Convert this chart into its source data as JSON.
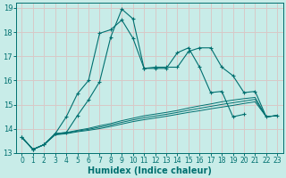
{
  "xlabel": "Humidex (Indice chaleur)",
  "ylabel": "",
  "xlim": [
    -0.5,
    23.5
  ],
  "ylim": [
    13,
    19.2
  ],
  "yticks": [
    13,
    14,
    15,
    16,
    17,
    18,
    19
  ],
  "xticks": [
    0,
    1,
    2,
    3,
    4,
    5,
    6,
    7,
    8,
    9,
    10,
    11,
    12,
    13,
    14,
    15,
    16,
    17,
    18,
    19,
    20,
    21,
    22,
    23
  ],
  "background_color": "#c8ece8",
  "grid_color": "#d8c8c8",
  "line_color": "#007070",
  "lines": [
    {
      "x": [
        0,
        1,
        2,
        3,
        4,
        5,
        6,
        7,
        8,
        9,
        10,
        11,
        12,
        13,
        14,
        15,
        16,
        17,
        18,
        19,
        20,
        21,
        22,
        23
      ],
      "y": [
        13.65,
        13.15,
        13.35,
        13.8,
        14.5,
        15.45,
        16.0,
        17.95,
        18.1,
        18.5,
        17.75,
        16.5,
        16.5,
        16.5,
        17.15,
        17.35,
        16.55,
        15.5,
        15.55,
        14.5,
        14.6,
        null,
        null,
        null
      ],
      "marker": "+"
    },
    {
      "x": [
        0,
        1,
        2,
        3,
        4,
        5,
        6,
        7,
        8,
        9,
        10,
        11,
        12,
        13,
        14,
        15,
        16,
        17,
        18,
        19,
        20,
        21,
        22,
        23
      ],
      "y": [
        13.65,
        13.15,
        13.35,
        13.8,
        13.85,
        14.55,
        15.2,
        15.95,
        17.8,
        18.95,
        18.55,
        16.5,
        16.55,
        16.55,
        16.55,
        17.2,
        17.35,
        17.35,
        16.55,
        16.2,
        15.5,
        15.55,
        14.5,
        14.55
      ],
      "marker": "+"
    },
    {
      "x": [
        0,
        1,
        2,
        3,
        4,
        5,
        6,
        7,
        8,
        9,
        10,
        11,
        12,
        13,
        14,
        15,
        16,
        17,
        18,
        19,
        20,
        21,
        22,
        23
      ],
      "y": [
        13.65,
        13.15,
        13.35,
        13.75,
        13.8,
        13.88,
        13.94,
        14.01,
        14.1,
        14.2,
        14.3,
        14.38,
        14.45,
        14.52,
        14.6,
        14.68,
        14.75,
        14.83,
        14.9,
        14.97,
        15.05,
        15.12,
        14.5,
        14.55
      ],
      "marker": null
    },
    {
      "x": [
        0,
        1,
        2,
        3,
        4,
        5,
        6,
        7,
        8,
        9,
        10,
        11,
        12,
        13,
        14,
        15,
        16,
        17,
        18,
        19,
        20,
        21,
        22,
        23
      ],
      "y": [
        13.65,
        13.15,
        13.35,
        13.78,
        13.83,
        13.91,
        13.98,
        14.07,
        14.16,
        14.27,
        14.37,
        14.46,
        14.53,
        14.6,
        14.68,
        14.77,
        14.85,
        14.93,
        15.01,
        15.08,
        15.15,
        15.22,
        14.5,
        14.55
      ],
      "marker": null
    },
    {
      "x": [
        0,
        1,
        2,
        3,
        4,
        5,
        6,
        7,
        8,
        9,
        10,
        11,
        12,
        13,
        14,
        15,
        16,
        17,
        18,
        19,
        20,
        21,
        22,
        23
      ],
      "y": [
        13.65,
        13.15,
        13.35,
        13.8,
        13.85,
        13.94,
        14.02,
        14.13,
        14.22,
        14.34,
        14.44,
        14.54,
        14.61,
        14.68,
        14.76,
        14.86,
        14.95,
        15.03,
        15.12,
        15.19,
        15.25,
        15.3,
        14.5,
        14.55
      ],
      "marker": null
    }
  ]
}
